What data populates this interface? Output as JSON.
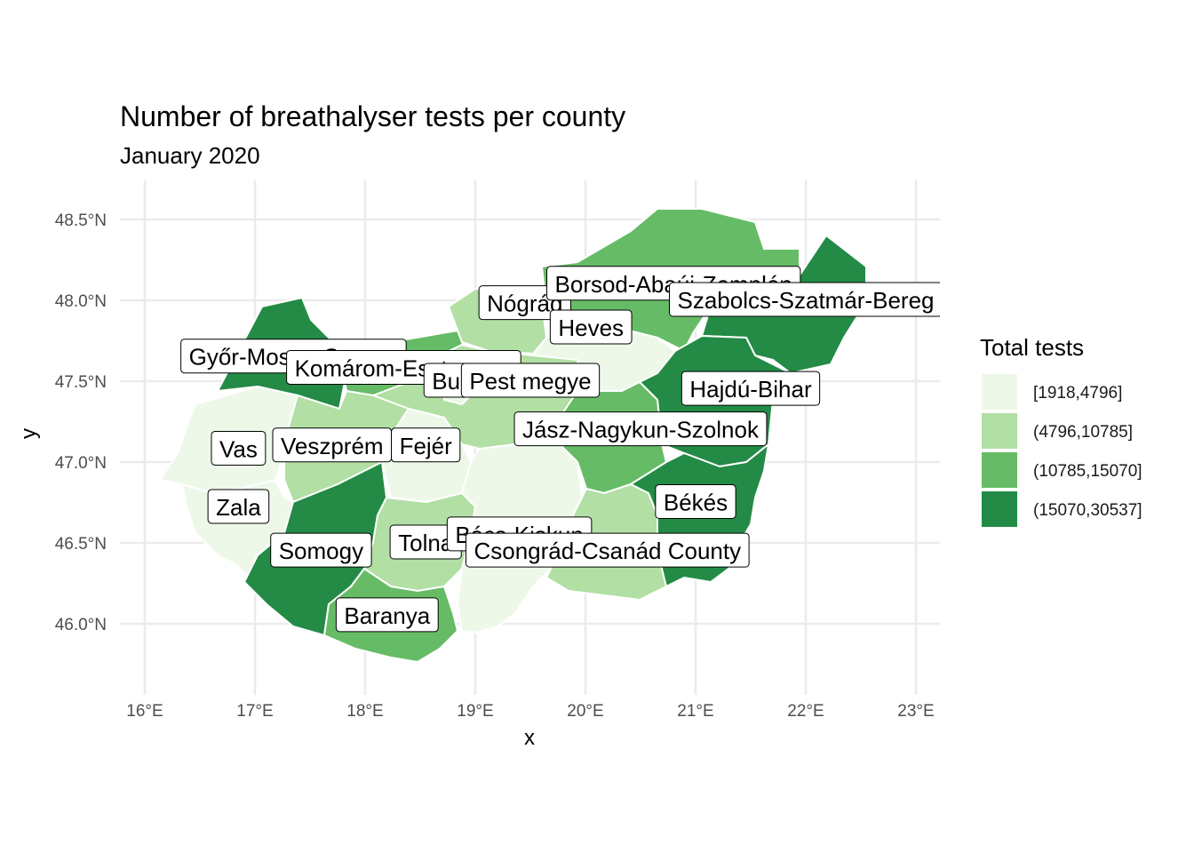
{
  "title": "Number of breathalyser tests per county",
  "subtitle": "January 2020",
  "axes": {
    "xlabel": "x",
    "ylabel": "y",
    "x_ticks": [
      "16°E",
      "17°E",
      "18°E",
      "19°E",
      "20°E",
      "21°E",
      "22°E",
      "23°E"
    ],
    "x_tick_values": [
      16,
      17,
      18,
      19,
      20,
      21,
      22,
      23
    ],
    "y_ticks": [
      "46.0°N",
      "46.5°N",
      "47.0°N",
      "47.5°N",
      "48.0°N",
      "48.5°N"
    ],
    "y_tick_values": [
      46.0,
      46.5,
      47.0,
      47.5,
      48.0,
      48.5
    ],
    "xlim": [
      15.8,
      23.2
    ],
    "ylim": [
      45.6,
      48.7
    ]
  },
  "legend": {
    "title": "Total tests",
    "placement": "right",
    "items": [
      {
        "label": "[1918,4796]",
        "color": "#edf8e9"
      },
      {
        "label": "(4796,10785]",
        "color": "#b1dfa4"
      },
      {
        "label": "(10785,15070]",
        "color": "#66bc66"
      },
      {
        "label": "(15070,30537]",
        "color": "#238b45"
      }
    ]
  },
  "counties": [
    {
      "name": "Győr-Moson-Sopron",
      "class": 3,
      "lon": 17.35,
      "lat": 47.65
    },
    {
      "name": "Komárom-Esztergom",
      "class": 2,
      "lon": 18.35,
      "lat": 47.58
    },
    {
      "name": "Budapest",
      "class": 0,
      "lon": 19.05,
      "lat": 47.5
    },
    {
      "name": "Pest megye",
      "class": 1,
      "lon": 19.5,
      "lat": 47.5
    },
    {
      "name": "Nógrád",
      "class": 1,
      "lon": 19.45,
      "lat": 47.98
    },
    {
      "name": "Borsod-Abaúj-Zemplén",
      "class": 2,
      "lon": 20.8,
      "lat": 48.1
    },
    {
      "name": "Szabolcs-Szatmár-Bereg",
      "class": 3,
      "lon": 22.0,
      "lat": 48.0
    },
    {
      "name": "Heves",
      "class": 0,
      "lon": 20.05,
      "lat": 47.83
    },
    {
      "name": "Hajdú-Bihar",
      "class": 3,
      "lon": 21.5,
      "lat": 47.45
    },
    {
      "name": "Jász-Nagykun-Szolnok",
      "class": 2,
      "lon": 20.5,
      "lat": 47.2
    },
    {
      "name": "Vas",
      "class": 0,
      "lon": 16.85,
      "lat": 47.08
    },
    {
      "name": "Veszprém",
      "class": 1,
      "lon": 17.7,
      "lat": 47.1
    },
    {
      "name": "Fejér",
      "class": 0,
      "lon": 18.55,
      "lat": 47.1
    },
    {
      "name": "Zala",
      "class": 0,
      "lon": 16.85,
      "lat": 46.72
    },
    {
      "name": "Somogy",
      "class": 3,
      "lon": 17.6,
      "lat": 46.45
    },
    {
      "name": "Tolna",
      "class": 1,
      "lon": 18.55,
      "lat": 46.5
    },
    {
      "name": "Bács-Kiskun",
      "class": 0,
      "lon": 19.4,
      "lat": 46.55
    },
    {
      "name": "Csongrád-Csanád County",
      "class": 1,
      "lon": 20.2,
      "lat": 46.45
    },
    {
      "name": "Békés",
      "class": 3,
      "lon": 21.0,
      "lat": 46.75
    },
    {
      "name": "Baranya",
      "class": 2,
      "lon": 18.2,
      "lat": 46.05
    }
  ]
}
